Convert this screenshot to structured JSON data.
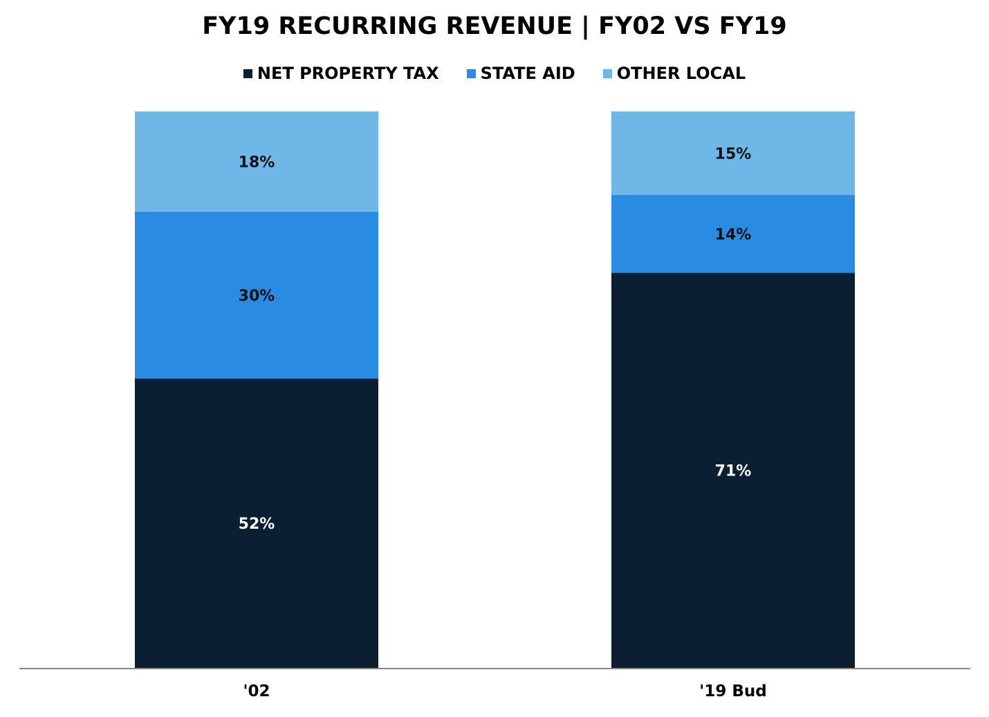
{
  "chart_data": {
    "type": "bar",
    "stacked": true,
    "title": "FY19 RECURRING REVENUE | FY02 VS FY19",
    "categories": [
      "'02",
      "'19 Bud"
    ],
    "series": [
      {
        "name": "NET PROPERTY TAX",
        "values": [
          52,
          71
        ],
        "labels": [
          "52%",
          "71%"
        ],
        "color": "#0b1f33",
        "label_color": "#ffffff"
      },
      {
        "name": "STATE AID",
        "values": [
          30,
          14
        ],
        "labels": [
          "30%",
          "14%"
        ],
        "color": "#2a8be3",
        "label_color": "#111111"
      },
      {
        "name": "OTHER LOCAL",
        "values": [
          18,
          15
        ],
        "labels": [
          "18%",
          "15%"
        ],
        "color": "#6db8e6",
        "label_color": "#111111"
      }
    ],
    "ylim": [
      0,
      100
    ],
    "xlabel": "",
    "ylabel": "",
    "grid": false,
    "legend_position": "top"
  }
}
